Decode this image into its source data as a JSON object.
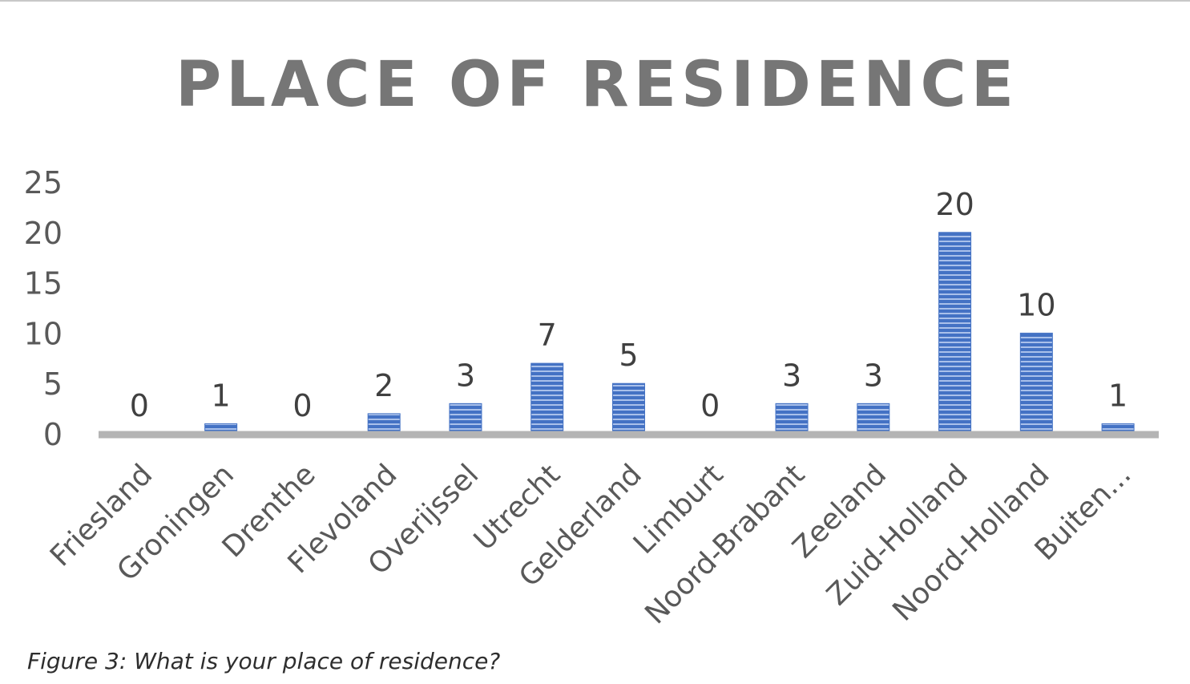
{
  "caption": "Figure 3: What is your place of residence?",
  "colors": {
    "bar": "#4472c4",
    "bar_stripe": "#a9c0ea",
    "axis": "#b4b4b4",
    "title": "#767676"
  },
  "chart_data": {
    "type": "bar",
    "title": "PLACE OF RESIDENCE",
    "xlabel": "",
    "ylabel": "",
    "ylim": [
      0,
      25
    ],
    "yticks": [
      0,
      5,
      10,
      15,
      20,
      25
    ],
    "grid": false,
    "legend": "none",
    "categories": [
      "Friesland",
      "Groningen",
      "Drenthe",
      "Flevoland",
      "Overijssel",
      "Utrecht",
      "Gelderland",
      "Limburt",
      "Noord-Brabant",
      "Zeeland",
      "Zuid-Holland",
      "Noord-Holland",
      "Buiten..."
    ],
    "values": [
      0,
      1,
      0,
      2,
      3,
      7,
      5,
      0,
      3,
      3,
      20,
      10,
      1
    ],
    "data_labels": [
      "0",
      "1",
      "0",
      "2",
      "3",
      "7",
      "5",
      "0",
      "3",
      "3",
      "20",
      "10",
      "1"
    ]
  }
}
